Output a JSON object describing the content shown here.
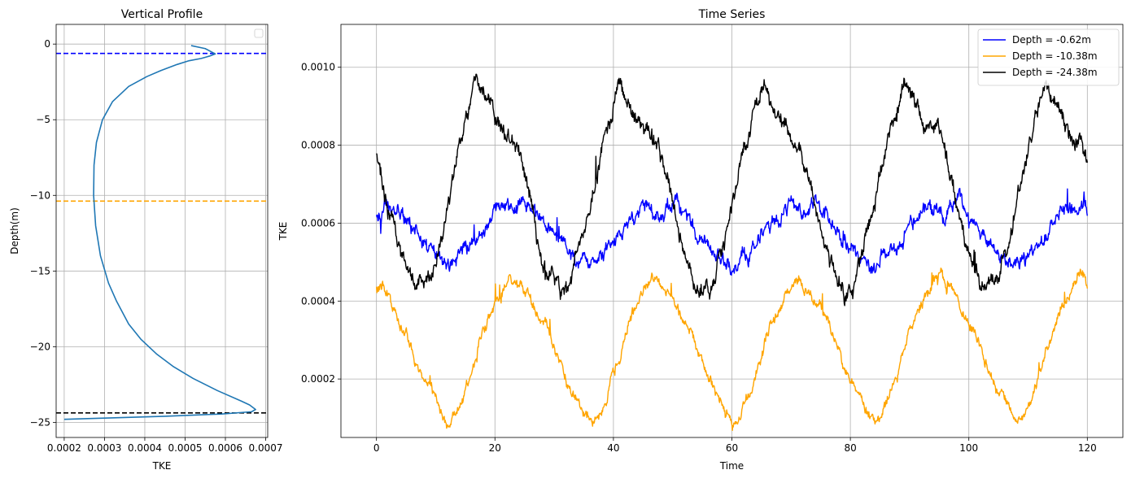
{
  "chart_data": [
    {
      "type": "line",
      "title": "Vertical Profile",
      "xlabel": "TKE",
      "ylabel": "Depth(m)",
      "xlim": [
        0.00018,
        0.000705
      ],
      "ylim": [
        -26,
        1.3
      ],
      "grid": true,
      "legend": "top-right (empty)",
      "xticks": [
        0.0002,
        0.0003,
        0.0004,
        0.0005,
        0.0006,
        0.0007
      ],
      "xtick_labels": [
        "0.0002",
        "0.0003",
        "0.0004",
        "0.0005",
        "0.0006",
        "0.0007"
      ],
      "yticks": [
        0,
        -5,
        -10,
        -15,
        -20,
        -25
      ],
      "ytick_labels": [
        "0",
        "−5",
        "−10",
        "−15",
        "−20",
        "−25"
      ],
      "profile": {
        "color": "#1f77b4",
        "x": [
          0.000515,
          0.00055,
          0.000575,
          0.00056,
          0.00054,
          0.00051,
          0.00048,
          0.00044,
          0.000405,
          0.00036,
          0.00032,
          0.000295,
          0.00028,
          0.000274,
          0.000273,
          0.000278,
          0.00029,
          0.00031,
          0.00033,
          0.00036,
          0.00039,
          0.00043,
          0.00047,
          0.00052,
          0.00058,
          0.00064,
          0.00066,
          0.000675,
          0.000665,
          0.00059,
          0.00045,
          0.0003,
          0.0002
        ],
        "y": [
          -0.1,
          -0.3,
          -0.65,
          -0.8,
          -0.95,
          -1.1,
          -1.35,
          -1.75,
          -2.15,
          -2.8,
          -3.8,
          -5.0,
          -6.5,
          -8.0,
          -10.0,
          -12.0,
          -14.0,
          -15.8,
          -17.0,
          -18.5,
          -19.5,
          -20.5,
          -21.3,
          -22.1,
          -22.9,
          -23.6,
          -23.85,
          -24.15,
          -24.3,
          -24.45,
          -24.6,
          -24.72,
          -24.8
        ]
      },
      "hlines": [
        {
          "y": -0.62,
          "color": "#0000ff"
        },
        {
          "y": -10.38,
          "color": "#ffa500"
        },
        {
          "y": -24.38,
          "color": "#000000"
        }
      ]
    },
    {
      "type": "line",
      "title": "Time Series",
      "xlabel": "Time",
      "ylabel": "TKE",
      "xlim": [
        -6,
        126
      ],
      "ylim": [
        5e-05,
        0.00111
      ],
      "grid": true,
      "legend": "top-right",
      "xticks": [
        0,
        20,
        40,
        60,
        80,
        100,
        120
      ],
      "xtick_labels": [
        "0",
        "20",
        "40",
        "60",
        "80",
        "100",
        "120"
      ],
      "yticks": [
        0.0002,
        0.0004,
        0.0006,
        0.0008,
        0.001
      ],
      "ytick_labels": [
        "0.0002",
        "0.0004",
        "0.0006",
        "0.0008",
        "0.0010"
      ],
      "period": 24,
      "series": [
        {
          "name": "Depth = -0.62m",
          "color": "#0000ff",
          "noise": 2.5e-05,
          "t": [
            0,
            2,
            4,
            6,
            8,
            9.5,
            12,
            14,
            16,
            18,
            20,
            22,
            23.5
          ],
          "v": [
            0.00063,
            0.00065,
            0.00062,
            0.000575,
            0.000535,
            0.00051,
            0.000495,
            0.00052,
            0.000545,
            0.00059,
            0.00063,
            0.00064,
            0.000635
          ]
        },
        {
          "name": "Depth = -10.38m",
          "color": "#ffa500",
          "noise": 1.8e-05,
          "t": [
            0,
            1,
            3,
            5,
            7,
            9,
            10.5,
            12.2,
            13.5,
            15,
            16.5,
            18,
            19.5,
            21,
            22.5,
            23.5
          ],
          "v": [
            0.000435,
            0.00043,
            0.00038,
            0.00032,
            0.00024,
            0.00017,
            0.000125,
            8.5e-05,
            0.00011,
            0.000165,
            0.00024,
            0.00032,
            0.000375,
            0.00042,
            0.000465,
            0.00046
          ]
        },
        {
          "name": "Depth = -24.38m",
          "color": "#000000",
          "noise": 2.8e-05,
          "t": [
            0,
            1.5,
            3.5,
            5.5,
            7,
            8.5,
            10,
            12,
            14,
            15.5,
            17,
            18.5,
            20,
            22,
            23.5
          ],
          "v": [
            0.00078,
            0.00068,
            0.00055,
            0.00046,
            0.00042,
            0.00044,
            0.00052,
            0.00065,
            0.00079,
            0.00087,
            0.00097,
            0.00092,
            0.00087,
            0.00083,
            0.0008
          ]
        }
      ]
    }
  ]
}
